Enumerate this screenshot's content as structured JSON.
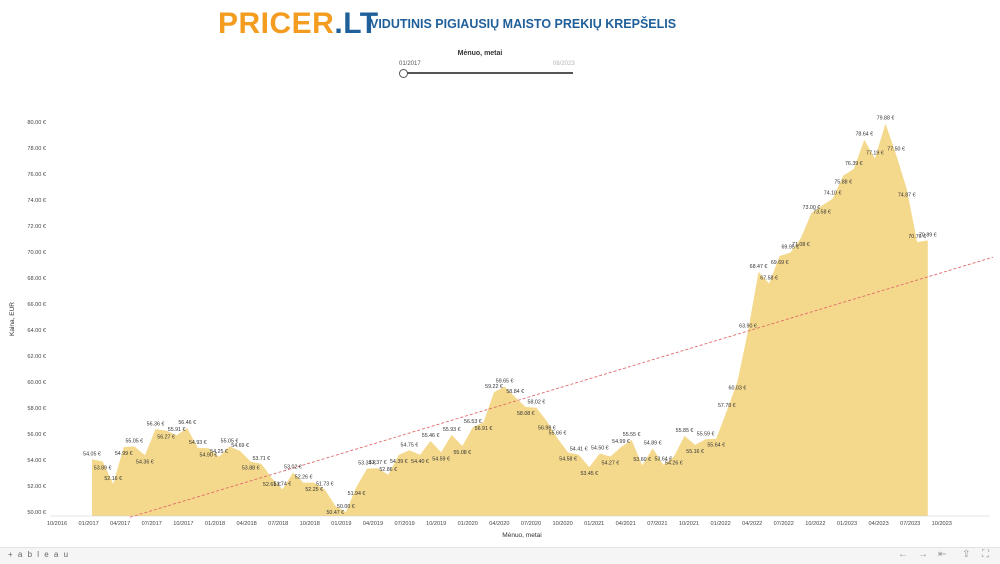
{
  "header": {
    "logo_part1": "PRICER",
    "logo_part2": ".LT",
    "subtitle": "VIDUTINIS PIGIAUSIŲ MAISTO PREKIŲ KREPŠELIS"
  },
  "filter": {
    "title": "Mėnuo, metai",
    "start": "01/2017",
    "end": "08/2023",
    "position": 0
  },
  "toolbar": {
    "logo": "+ a b l e a u",
    "icons": [
      "undo-icon",
      "redo-icon",
      "revert-icon",
      "share-icon",
      "fullscreen-icon"
    ]
  },
  "colors": {
    "area": "#f4d98d",
    "trend": "#e06a6a",
    "logo_orange": "#f39c1f",
    "logo_blue": "#1f5f9a"
  },
  "chart_data": {
    "type": "area",
    "xlabel": "Mėnuo, metai",
    "ylabel": "Kaina, EUR",
    "x_ticks": [
      "10/2016",
      "01/2017",
      "04/2017",
      "07/2017",
      "10/2017",
      "01/2018",
      "04/2018",
      "07/2018",
      "10/2018",
      "01/2019",
      "04/2019",
      "07/2019",
      "10/2019",
      "01/2020",
      "04/2020",
      "07/2020",
      "10/2020",
      "01/2021",
      "04/2021",
      "07/2021",
      "10/2021",
      "01/2022",
      "04/2022",
      "07/2022",
      "10/2022",
      "01/2023",
      "04/2023",
      "07/2023",
      "10/2023"
    ],
    "y_ticks": [
      "50.00 €",
      "52.00 €",
      "54.00 €",
      "56.00 €",
      "58.00 €",
      "60.00 €",
      "62.00 €",
      "64.00 €",
      "66.00 €",
      "68.00 €",
      "70.00 €",
      "72.00 €",
      "74.00 €",
      "76.00 €",
      "78.00 €",
      "80.00 €"
    ],
    "ylim": [
      49.6,
      80.5
    ],
    "x_start": "01/2017",
    "values": [
      54.05,
      53.89,
      52.16,
      54.99,
      55.05,
      54.36,
      56.36,
      56.27,
      55.91,
      56.46,
      54.93,
      54.9,
      54.25,
      55.05,
      54.69,
      53.88,
      53.71,
      52.61,
      51.74,
      53.02,
      52.26,
      52.25,
      51.73,
      50.47,
      50.0,
      51.94,
      53.34,
      53.37,
      52.86,
      54.39,
      54.75,
      54.4,
      55.46,
      54.59,
      55.93,
      55.08,
      56.53,
      56.91,
      59.22,
      59.65,
      58.84,
      58.08,
      58.02,
      56.98,
      55.66,
      54.58,
      54.41,
      53.45,
      54.5,
      54.27,
      54.99,
      55.55,
      53.6,
      54.89,
      53.64,
      54.26,
      55.85,
      55.16,
      55.59,
      55.64,
      57.78,
      60.03,
      63.9,
      68.47,
      67.58,
      69.69,
      69.95,
      71.08,
      73.0,
      73.58,
      74.1,
      75.88,
      76.39,
      78.64,
      77.19,
      79.88,
      77.5,
      74.87,
      70.76,
      70.89
    ],
    "labels": [
      "54.05 €",
      "53.89 €",
      "52.16 €",
      "54.99 €",
      "55.05 €",
      "54.36 €",
      "56.36 €",
      "56.27 €",
      "55.91 €",
      "56.46 €",
      "54.93 €",
      "54.90 €",
      "54.25 €",
      "55.05 €",
      "54.69 €",
      "53.88 €",
      "53.71 €",
      "52.61 €",
      "51.74 €",
      "53.02 €",
      "52.26 €",
      "52.25 €",
      "51.73 €",
      "50.47 €",
      "50.00 €",
      "51.94 €",
      "53.34 €",
      "53.37 €",
      "52.86 €",
      "54.39 €",
      "54.75 €",
      "54.40 €",
      "55.46 €",
      "54.59 €",
      "55.93 €",
      "55.08 €",
      "56.53 €",
      "56.91 €",
      "59.22 €",
      "59.65 €",
      "58.84 €",
      "58.08 €",
      "58.02 €",
      "56.98 €",
      "55.66 €",
      "54.58 €",
      "54.41 €",
      "53.45 €",
      "54.50 €",
      "54.27 €",
      "54.99 €",
      "55.55 €",
      "53.60 €",
      "54.89 €",
      "53.64 €",
      "54.26 €",
      "55.85 €",
      "55.16 €",
      "55.59 €",
      "55.64 €",
      "57.78 €",
      "60.03 €",
      "63.90 €",
      "68.47 €",
      "67.58 €",
      "69.69 €",
      "69.95 €",
      "71.08 €",
      "73.00 €",
      "73.58 €",
      "74.10 €",
      "75.88 €",
      "76.39 €",
      "78.64 €",
      "77.19 €",
      "79.88 €",
      "77.50 €",
      "74.87 €",
      "70.76 €",
      "70.89 €"
    ],
    "trend_line": {
      "from": 49.6,
      "to": 69.6
    },
    "grid": false,
    "legend": "none"
  }
}
